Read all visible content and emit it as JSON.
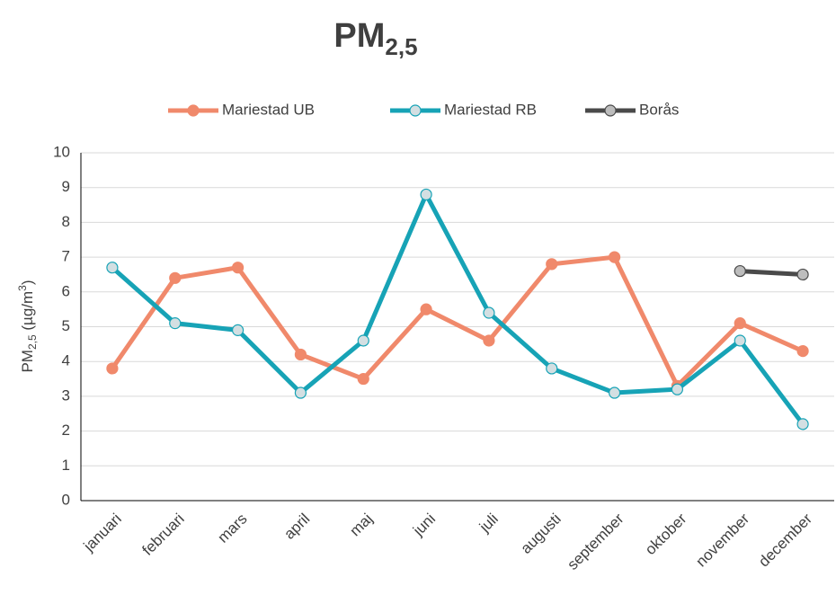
{
  "chart_data": {
    "type": "line",
    "title": [
      "PM",
      "2,5"
    ],
    "ylabel": [
      "PM",
      "2,5",
      " (µg/m",
      "3",
      ")"
    ],
    "categories": [
      "januari",
      "februari",
      "mars",
      "april",
      "maj",
      "juni",
      "juli",
      "augusti",
      "september",
      "oktober",
      "november",
      "december"
    ],
    "series": [
      {
        "name": "Mariestad UB",
        "color": "#f0896b",
        "marker_fill": "#f0896b",
        "values": [
          3.8,
          6.4,
          6.7,
          4.2,
          3.5,
          5.5,
          4.6,
          6.8,
          7.0,
          3.3,
          5.1,
          4.3
        ]
      },
      {
        "name": "Mariestad RB",
        "color": "#17a3b6",
        "marker_fill": "#d3dfe2",
        "values": [
          6.7,
          5.1,
          4.9,
          3.1,
          4.6,
          8.8,
          5.4,
          3.8,
          3.1,
          3.2,
          4.6,
          2.2
        ]
      },
      {
        "name": "Borås",
        "color": "#4a4a4a",
        "marker_fill": "#bdbdbd",
        "values": [
          null,
          null,
          null,
          null,
          null,
          null,
          null,
          null,
          null,
          null,
          6.6,
          6.5
        ]
      }
    ],
    "ylim": [
      0,
      10
    ],
    "yticks": [
      0,
      1,
      2,
      3,
      4,
      5,
      6,
      7,
      8,
      9,
      10
    ],
    "grid": true,
    "legend": "top"
  }
}
